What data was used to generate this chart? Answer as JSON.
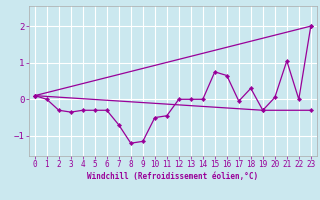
{
  "xlabel": "Windchill (Refroidissement éolien,°C)",
  "background_color": "#cbe8ef",
  "grid_color": "#ffffff",
  "line_color": "#990099",
  "xlim": [
    -0.5,
    23.5
  ],
  "ylim": [
    -1.55,
    2.55
  ],
  "yticks": [
    -1,
    0,
    1,
    2
  ],
  "xticks": [
    0,
    1,
    2,
    3,
    4,
    5,
    6,
    7,
    8,
    9,
    10,
    11,
    12,
    13,
    14,
    15,
    16,
    17,
    18,
    19,
    20,
    21,
    22,
    23
  ],
  "series1_x": [
    0,
    1,
    2,
    3,
    4,
    5,
    6,
    7,
    8,
    9,
    10,
    11,
    12,
    13,
    14,
    15,
    16,
    17,
    18,
    19,
    20,
    21,
    22,
    23
  ],
  "series1_y": [
    0.1,
    0.0,
    -0.3,
    -0.35,
    -0.3,
    -0.3,
    -0.3,
    -0.7,
    -1.2,
    -1.15,
    -0.5,
    -0.45,
    0.0,
    0.0,
    0.0,
    0.75,
    0.65,
    -0.05,
    0.3,
    -0.3,
    0.05,
    1.05,
    0.0,
    2.0
  ],
  "series2_x": [
    0,
    23
  ],
  "series2_y": [
    0.1,
    2.0
  ],
  "series3_x": [
    0,
    19,
    23
  ],
  "series3_y": [
    0.1,
    -0.3,
    -0.3
  ],
  "xlabel_fontsize": 5.5,
  "tick_fontsize": 5.5,
  "ytick_fontsize": 6.5
}
